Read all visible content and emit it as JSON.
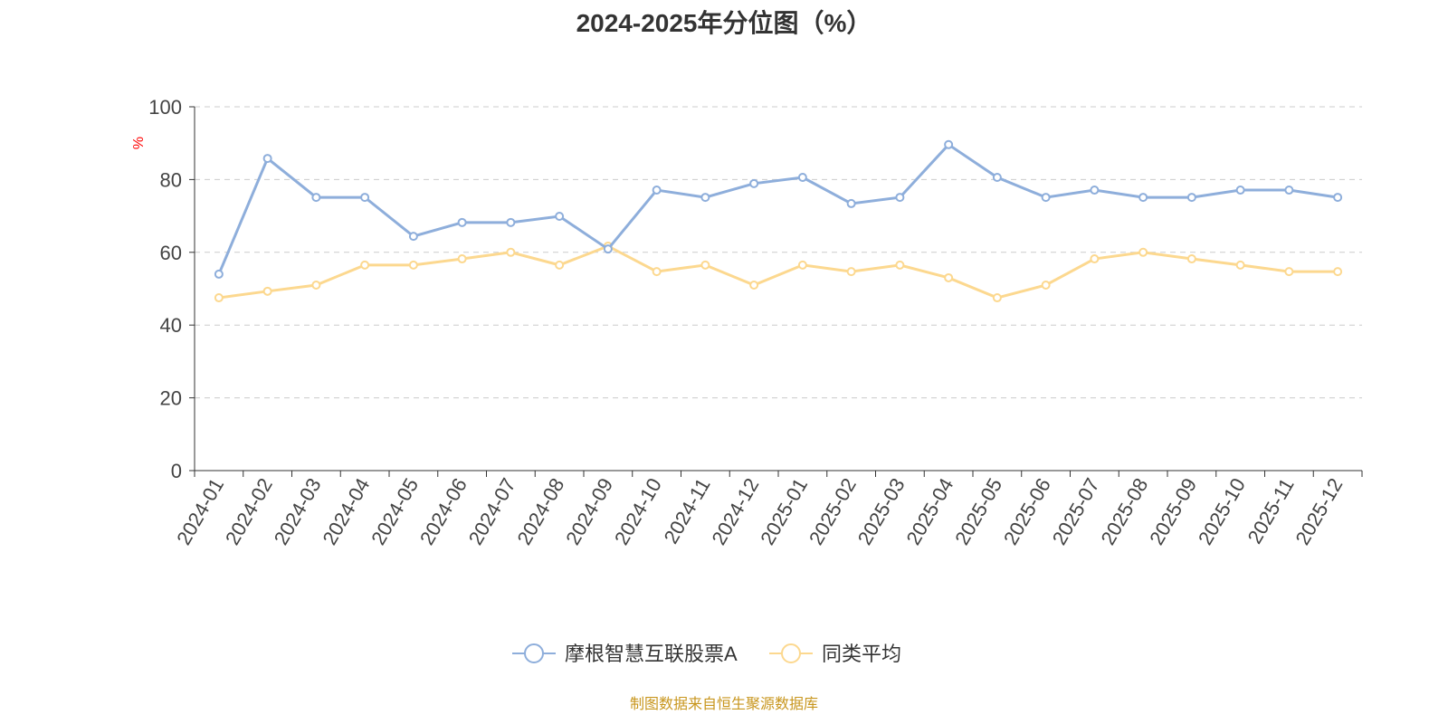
{
  "chart_data": {
    "type": "line",
    "title": "2024-2025年分位图（%）",
    "ylabel": "%",
    "xlabel": "",
    "ylim": [
      0,
      100
    ],
    "yticks": [
      0,
      20,
      40,
      60,
      80,
      100
    ],
    "grid": true,
    "legend_position": "bottom",
    "categories": [
      "2024-01",
      "2024-02",
      "2024-03",
      "2024-04",
      "2024-05",
      "2024-06",
      "2024-07",
      "2024-08",
      "2024-09",
      "2024-10",
      "2024-11",
      "2024-12",
      "2025-01",
      "2025-02",
      "2025-03",
      "2025-04",
      "2025-05",
      "2025-06",
      "2025-07",
      "2025-08",
      "2025-09",
      "2025-10",
      "2025-11",
      "2025-12"
    ],
    "series": [
      {
        "name": "摩根智慧互联股票A",
        "color": "#8eaedb",
        "values": [
          54.0,
          85.8,
          75.1,
          75.1,
          64.4,
          68.2,
          68.2,
          69.9,
          60.9,
          77.1,
          75.1,
          78.9,
          80.6,
          73.4,
          75.1,
          89.6,
          80.6,
          75.1,
          77.1,
          75.1,
          75.1,
          77.1,
          77.1,
          75.1
        ]
      },
      {
        "name": "同类平均",
        "color": "#fcd88f",
        "values": [
          47.5,
          49.3,
          51.0,
          56.5,
          56.5,
          58.2,
          60.0,
          56.5,
          61.7,
          54.7,
          56.5,
          51.0,
          56.5,
          54.7,
          56.5,
          53.0,
          47.5,
          51.0,
          58.2,
          60.0,
          58.2,
          56.5,
          54.7,
          54.7
        ]
      }
    ]
  },
  "source": "制图数据来自恒生聚源数据库"
}
